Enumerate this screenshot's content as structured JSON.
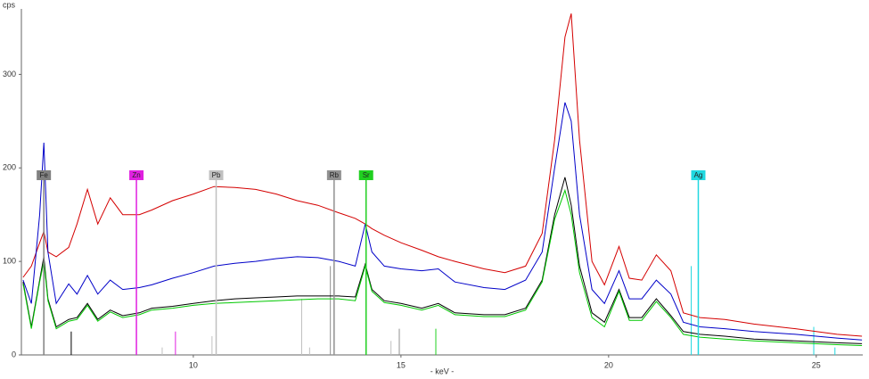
{
  "chart_data": {
    "type": "line",
    "y_label": "cps",
    "x_label": "- keV -",
    "xlim": [
      5.86,
      26.12
    ],
    "ylim": [
      0,
      370
    ],
    "xticks": [
      10,
      15,
      20,
      25
    ],
    "yticks": [
      0,
      100,
      200,
      300
    ],
    "x": [
      5.9,
      6.1,
      6.3,
      6.4,
      6.5,
      6.7,
      7.0,
      7.2,
      7.45,
      7.7,
      8.0,
      8.3,
      8.7,
      9.0,
      9.5,
      10.0,
      10.5,
      11.0,
      11.5,
      12.0,
      12.5,
      13.0,
      13.5,
      13.9,
      14.14,
      14.3,
      14.6,
      15.0,
      15.5,
      15.9,
      16.3,
      17.0,
      17.5,
      18.0,
      18.4,
      18.7,
      18.95,
      19.1,
      19.3,
      19.6,
      19.9,
      20.25,
      20.5,
      20.8,
      21.15,
      21.5,
      21.8,
      22.2,
      22.8,
      23.5,
      24.5,
      25.5,
      26.1
    ],
    "series": [
      {
        "color": "#d40000",
        "values": [
          83,
          95,
          120,
          132,
          110,
          105,
          115,
          140,
          177,
          140,
          168,
          150,
          150,
          155,
          165,
          172,
          180,
          179,
          177,
          172,
          165,
          160,
          152,
          146,
          140,
          135,
          128,
          120,
          112,
          105,
          100,
          92,
          88,
          95,
          130,
          230,
          340,
          365,
          230,
          100,
          75,
          116,
          82,
          80,
          107,
          90,
          45,
          40,
          38,
          33,
          28,
          22,
          20
        ]
      },
      {
        "color": "#0000c8",
        "values": [
          80,
          55,
          150,
          227,
          110,
          55,
          76,
          65,
          85,
          65,
          80,
          70,
          72,
          75,
          82,
          88,
          95,
          98,
          100,
          103,
          105,
          104,
          100,
          95,
          140,
          110,
          95,
          92,
          90,
          92,
          78,
          72,
          70,
          80,
          110,
          200,
          270,
          250,
          150,
          70,
          55,
          90,
          60,
          60,
          80,
          65,
          35,
          30,
          28,
          25,
          22,
          18,
          16
        ]
      },
      {
        "color": "#000000",
        "values": [
          78,
          30,
          80,
          105,
          60,
          30,
          38,
          40,
          55,
          38,
          48,
          42,
          45,
          50,
          52,
          55,
          58,
          60,
          61,
          62,
          63,
          63,
          63,
          62,
          97,
          70,
          58,
          55,
          50,
          55,
          45,
          43,
          43,
          50,
          80,
          150,
          190,
          160,
          95,
          45,
          35,
          70,
          40,
          40,
          60,
          42,
          25,
          22,
          20,
          17,
          15,
          13,
          12
        ]
      },
      {
        "color": "#00c800",
        "values": [
          76,
          28,
          78,
          100,
          58,
          28,
          36,
          38,
          53,
          36,
          46,
          40,
          43,
          48,
          50,
          53,
          55,
          56,
          57,
          58,
          59,
          60,
          60,
          58,
          95,
          68,
          56,
          53,
          48,
          53,
          43,
          41,
          41,
          48,
          78,
          145,
          176,
          150,
          88,
          40,
          30,
          68,
          37,
          37,
          57,
          40,
          22,
          19,
          17,
          15,
          13,
          11,
          10
        ]
      }
    ],
    "elements": [
      {
        "name": "Fe",
        "energy": 6.4,
        "color": "#808080"
      },
      {
        "name": "Zn",
        "energy": 8.63,
        "color": "#e020e0"
      },
      {
        "name": "Pb",
        "energy": 10.55,
        "color": "#c0c0c0"
      },
      {
        "name": "Rb",
        "energy": 13.39,
        "color": "#909090"
      },
      {
        "name": "Sr",
        "energy": 14.16,
        "color": "#20d020"
      },
      {
        "name": "Ag",
        "energy": 22.16,
        "color": "#20d8e0"
      }
    ],
    "lines": [
      {
        "energy": 7.06,
        "height": 25,
        "color": "#000000"
      },
      {
        "energy": 9.25,
        "height": 8,
        "color": "#c0c0c0"
      },
      {
        "energy": 9.57,
        "height": 25,
        "color": "#e020e0"
      },
      {
        "energy": 10.45,
        "height": 20,
        "color": "#c0c0c0"
      },
      {
        "energy": 12.61,
        "height": 60,
        "color": "#c0c0c0"
      },
      {
        "energy": 12.8,
        "height": 8,
        "color": "#c0c0c0"
      },
      {
        "energy": 13.3,
        "height": 95,
        "color": "#909090"
      },
      {
        "energy": 14.76,
        "height": 15,
        "color": "#c0c0c0"
      },
      {
        "energy": 14.96,
        "height": 28,
        "color": "#909090"
      },
      {
        "energy": 15.84,
        "height": 28,
        "color": "#20d020"
      },
      {
        "energy": 21.99,
        "height": 95,
        "color": "#20d8e0"
      },
      {
        "energy": 24.94,
        "height": 30,
        "color": "#20d8e0"
      },
      {
        "energy": 25.45,
        "height": 8,
        "color": "#20d8e0"
      }
    ]
  }
}
